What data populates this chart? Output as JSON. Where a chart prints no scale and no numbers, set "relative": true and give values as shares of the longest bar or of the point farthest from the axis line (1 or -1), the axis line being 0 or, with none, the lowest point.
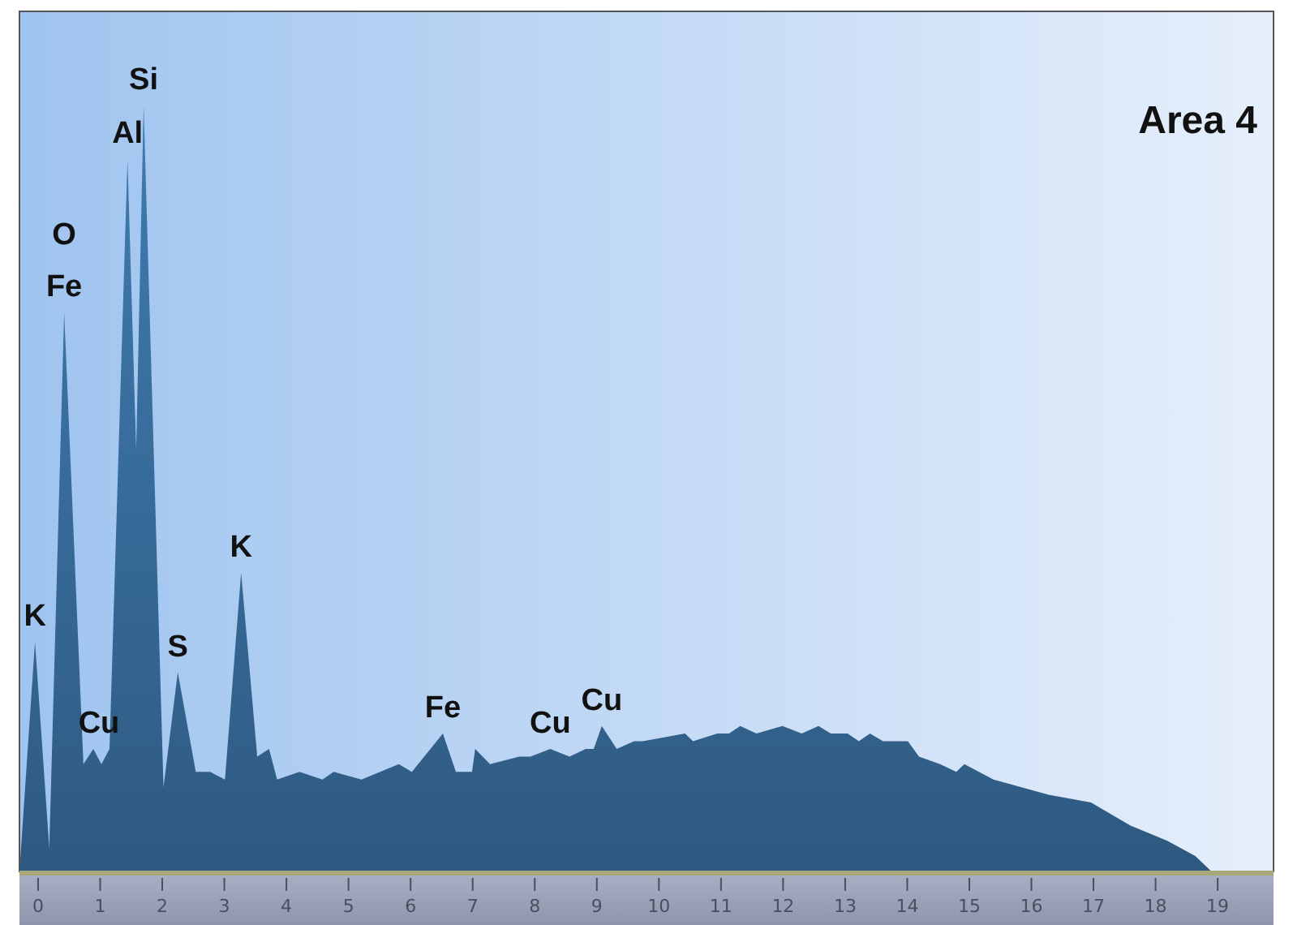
{
  "chart_data": {
    "type": "area",
    "title": "Area 4",
    "relative": true,
    "color": "#33638e",
    "x": [
      -0.3,
      -0.05,
      0.18,
      0.42,
      0.73,
      0.89,
      1.02,
      1.15,
      1.44,
      1.58,
      1.7,
      2.02,
      2.25,
      2.54,
      2.77,
      3.01,
      3.27,
      3.53,
      3.72,
      3.85,
      4.21,
      4.58,
      4.76,
      5.21,
      5.81,
      6.02,
      6.52,
      6.73,
      6.99,
      7.04,
      7.28,
      7.75,
      7.93,
      8.25,
      8.56,
      8.82,
      8.95,
      9.08,
      9.32,
      9.6,
      9.74,
      10.42,
      10.55,
      10.94,
      11.13,
      11.31,
      11.57,
      11.99,
      12.3,
      12.57,
      12.77,
      13.04,
      13.22,
      13.4,
      13.61,
      14.01,
      14.19,
      14.53,
      14.79,
      14.92,
      15.39,
      16.28,
      16.96,
      17.59,
      18.19,
      18.64,
      18.9,
      19.9
    ],
    "values": [
      0,
      0.3,
      0.03,
      0.73,
      0.14,
      0.16,
      0.14,
      0.16,
      0.93,
      0.55,
      1,
      0.11,
      0.26,
      0.13,
      0.13,
      0.12,
      0.39,
      0.15,
      0.16,
      0.12,
      0.13,
      0.12,
      0.13,
      0.12,
      0.14,
      0.13,
      0.18,
      0.13,
      0.13,
      0.16,
      0.14,
      0.15,
      0.15,
      0.16,
      0.15,
      0.16,
      0.16,
      0.19,
      0.16,
      0.17,
      0.17,
      0.18,
      0.17,
      0.18,
      0.18,
      0.19,
      0.18,
      0.19,
      0.18,
      0.19,
      0.18,
      0.18,
      0.17,
      0.18,
      0.17,
      0.17,
      0.15,
      0.14,
      0.13,
      0.14,
      0.12,
      0.1,
      0.09,
      0.06,
      0.04,
      0.02,
      0,
      0
    ],
    "xlim": [
      -0.3,
      19.9
    ],
    "xticks": [
      0,
      1,
      2,
      3,
      4,
      5,
      6,
      7,
      8,
      9,
      10,
      11,
      12,
      13,
      14,
      15,
      16,
      17,
      18,
      19
    ],
    "annotations": [
      {
        "text": "K",
        "x": -0.05,
        "y": 0.3
      },
      {
        "text": "Fe",
        "x": 0.42,
        "y": 0.73
      },
      {
        "text": "O",
        "x": 0.42,
        "y": 0.73
      },
      {
        "text": "Cu",
        "x": 0.98,
        "y": 0.16
      },
      {
        "text": "Al",
        "x": 1.44,
        "y": 0.93
      },
      {
        "text": "Si",
        "x": 1.7,
        "y": 1
      },
      {
        "text": "S",
        "x": 2.25,
        "y": 0.26
      },
      {
        "text": "K",
        "x": 3.27,
        "y": 0.39
      },
      {
        "text": "Fe",
        "x": 6.52,
        "y": 0.18
      },
      {
        "text": "Cu",
        "x": 8.25,
        "y": 0.16
      },
      {
        "text": "Cu",
        "x": 9.08,
        "y": 0.19
      }
    ]
  }
}
